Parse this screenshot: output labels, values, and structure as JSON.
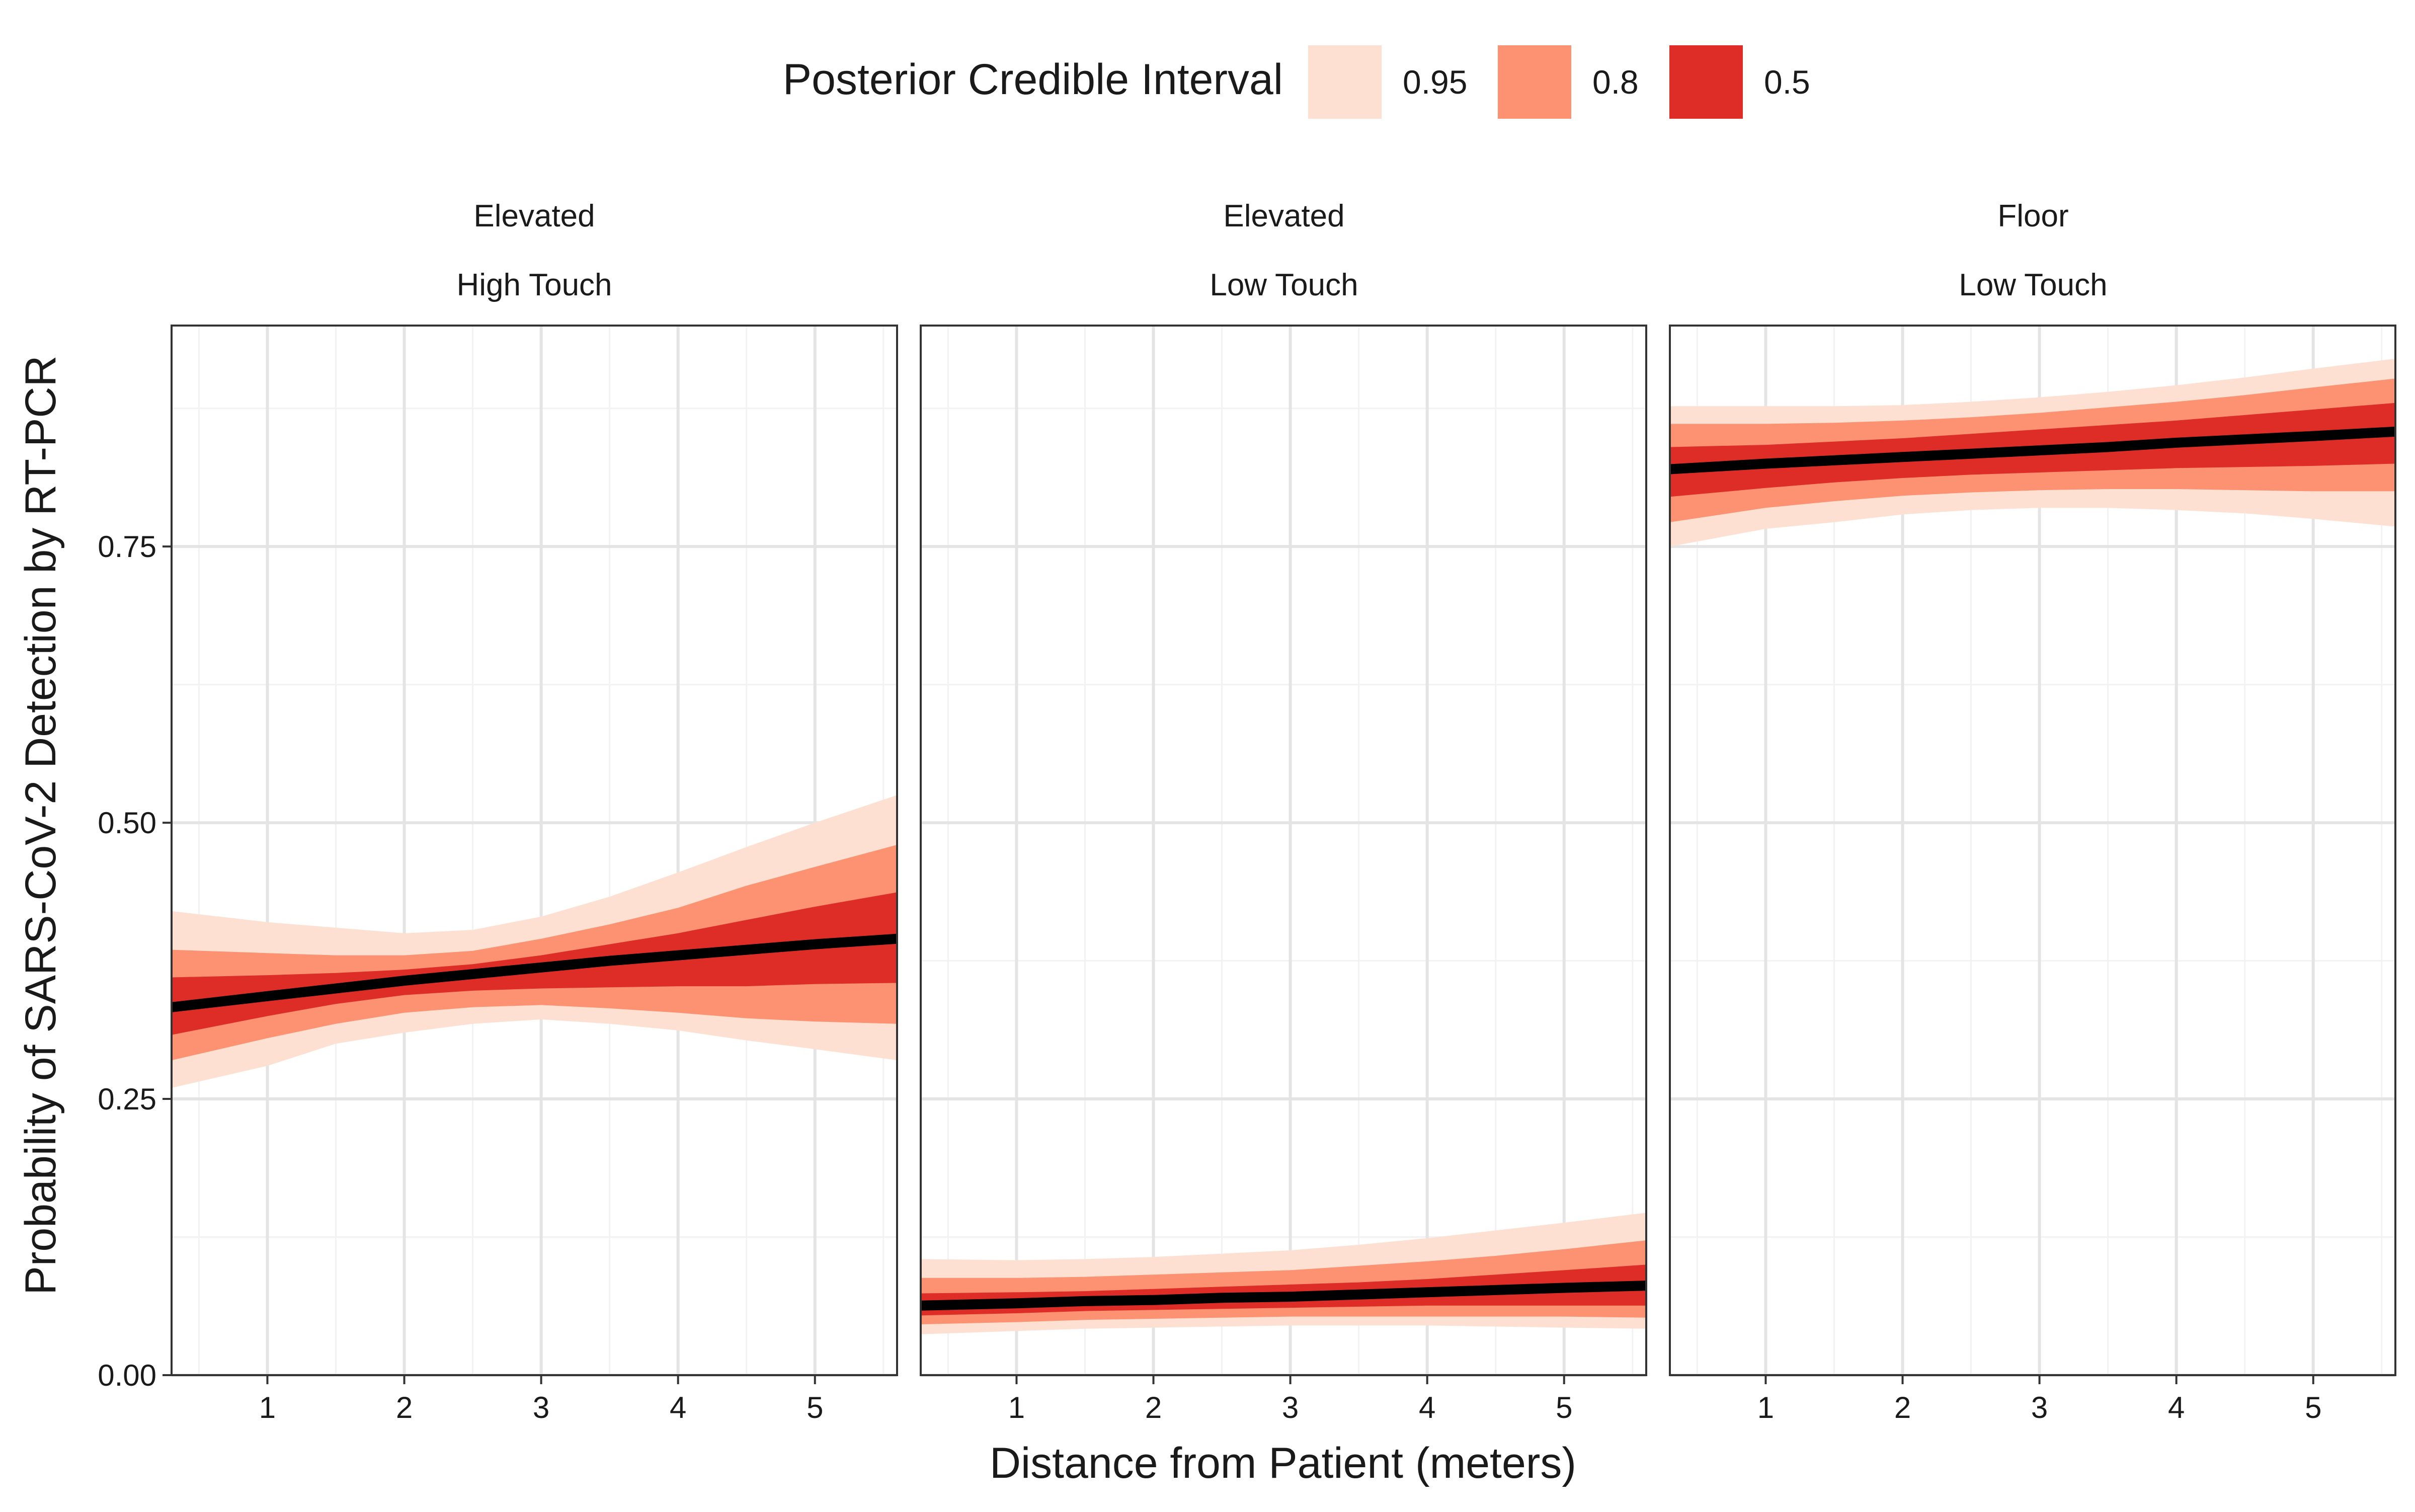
{
  "chart_data": {
    "type": "area",
    "legend": {
      "title": "Posterior Credible Interval",
      "position": "top",
      "entries": [
        {
          "label": "0.95",
          "color": "#FEE0D2"
        },
        {
          "label": "0.8",
          "color": "#FC9272"
        },
        {
          "label": "0.5",
          "color": "#DE2D26"
        }
      ]
    },
    "xlabel": "Distance from Patient (meters)",
    "ylabel": "Probability of SARS-CoV-2 Detection by RT-PCR",
    "xlim": [
      0.3,
      5.6
    ],
    "ylim": [
      0.0,
      0.95
    ],
    "x_ticks": [
      1,
      2,
      3,
      4,
      5
    ],
    "y_ticks": [
      0.0,
      0.25,
      0.5,
      0.75
    ],
    "y_tick_labels": [
      "0.00",
      "0.25",
      "0.50",
      "0.75"
    ],
    "grid": true,
    "line_color": "#000000",
    "x": [
      0.3,
      1.0,
      1.5,
      2.0,
      2.5,
      3.0,
      3.5,
      4.0,
      4.5,
      5.0,
      5.6
    ],
    "panels": [
      {
        "strip": [
          "Elevated",
          "High Touch"
        ],
        "median": [
          0.333,
          0.343,
          0.35,
          0.357,
          0.363,
          0.369,
          0.375,
          0.38,
          0.385,
          0.39,
          0.395
        ],
        "bands": {
          "0.95": {
            "lower": [
              0.26,
              0.28,
              0.3,
              0.31,
              0.318,
              0.322,
              0.318,
              0.312,
              0.303,
              0.295,
              0.285
            ],
            "upper": [
              0.42,
              0.41,
              0.405,
              0.4,
              0.403,
              0.415,
              0.433,
              0.455,
              0.478,
              0.5,
              0.525
            ]
          },
          "0.8": {
            "lower": [
              0.285,
              0.305,
              0.318,
              0.328,
              0.333,
              0.335,
              0.332,
              0.328,
              0.323,
              0.32,
              0.318
            ],
            "upper": [
              0.385,
              0.382,
              0.38,
              0.38,
              0.384,
              0.395,
              0.408,
              0.423,
              0.443,
              0.46,
              0.48
            ]
          },
          "0.5": {
            "lower": [
              0.308,
              0.325,
              0.336,
              0.344,
              0.348,
              0.35,
              0.351,
              0.352,
              0.352,
              0.354,
              0.355
            ],
            "upper": [
              0.36,
              0.362,
              0.364,
              0.367,
              0.372,
              0.38,
              0.39,
              0.4,
              0.412,
              0.424,
              0.437
            ]
          }
        }
      },
      {
        "strip": [
          "Elevated",
          "Low Touch"
        ],
        "median": [
          0.063,
          0.065,
          0.067,
          0.068,
          0.07,
          0.071,
          0.073,
          0.075,
          0.077,
          0.079,
          0.081
        ],
        "bands": {
          "0.95": {
            "lower": [
              0.037,
              0.04,
              0.042,
              0.043,
              0.044,
              0.045,
              0.045,
              0.045,
              0.044,
              0.043,
              0.042
            ],
            "upper": [
              0.105,
              0.104,
              0.105,
              0.107,
              0.11,
              0.113,
              0.118,
              0.124,
              0.131,
              0.138,
              0.147
            ]
          },
          "0.8": {
            "lower": [
              0.046,
              0.048,
              0.05,
              0.051,
              0.052,
              0.053,
              0.053,
              0.053,
              0.053,
              0.053,
              0.052
            ],
            "upper": [
              0.088,
              0.088,
              0.089,
              0.091,
              0.093,
              0.095,
              0.099,
              0.103,
              0.108,
              0.114,
              0.122
            ]
          },
          "0.5": {
            "lower": [
              0.054,
              0.056,
              0.058,
              0.059,
              0.06,
              0.061,
              0.062,
              0.063,
              0.063,
              0.063,
              0.063
            ],
            "upper": [
              0.074,
              0.075,
              0.076,
              0.078,
              0.08,
              0.082,
              0.084,
              0.087,
              0.091,
              0.095,
              0.1
            ]
          }
        }
      },
      {
        "strip": [
          "Floor",
          "Low Touch"
        ],
        "median": [
          0.82,
          0.825,
          0.828,
          0.831,
          0.834,
          0.837,
          0.84,
          0.844,
          0.847,
          0.85,
          0.854
        ],
        "bands": {
          "0.95": {
            "lower": [
              0.75,
              0.766,
              0.772,
              0.779,
              0.783,
              0.785,
              0.785,
              0.783,
              0.78,
              0.775,
              0.768
            ],
            "upper": [
              0.877,
              0.877,
              0.877,
              0.878,
              0.881,
              0.885,
              0.89,
              0.896,
              0.903,
              0.911,
              0.92
            ]
          },
          "0.8": {
            "lower": [
              0.772,
              0.785,
              0.791,
              0.796,
              0.799,
              0.801,
              0.802,
              0.802,
              0.801,
              0.8,
              0.8
            ],
            "upper": [
              0.861,
              0.861,
              0.862,
              0.864,
              0.867,
              0.871,
              0.876,
              0.881,
              0.887,
              0.894,
              0.902
            ]
          },
          "0.5": {
            "lower": [
              0.795,
              0.803,
              0.808,
              0.812,
              0.815,
              0.817,
              0.819,
              0.821,
              0.822,
              0.823,
              0.825
            ],
            "upper": [
              0.84,
              0.842,
              0.845,
              0.848,
              0.852,
              0.856,
              0.86,
              0.864,
              0.869,
              0.874,
              0.88
            ]
          }
        }
      }
    ]
  }
}
